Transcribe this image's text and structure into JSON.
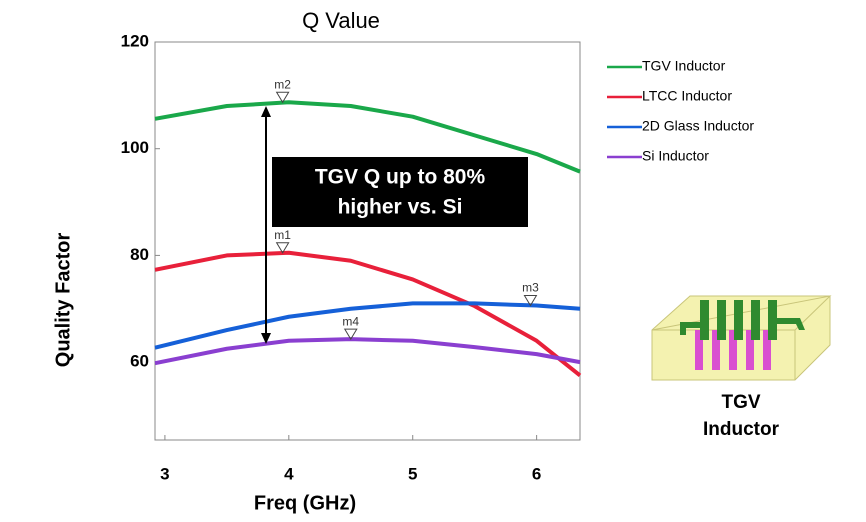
{
  "chart_data": {
    "type": "line",
    "title": "Q Value",
    "x_label": "Freq (GHz)",
    "y_label": "Quality Factor",
    "xlim": [
      2.92,
      6.35
    ],
    "ylim": [
      45.4,
      120
    ],
    "xticks": [
      3,
      4,
      5,
      6
    ],
    "yticks": [
      60,
      80,
      100,
      120
    ],
    "x": [
      2.92,
      3.5,
      4,
      4.5,
      5,
      5.5,
      6,
      6.35
    ],
    "series": [
      {
        "name": "TGV Inductor",
        "color": "#1aa84a",
        "values": [
          105.6,
          108,
          108.7,
          108,
          106,
          102.5,
          99,
          95.7
        ]
      },
      {
        "name": "LTCC Inductor",
        "color": "#e8203a",
        "values": [
          77.3,
          80,
          80.5,
          79,
          75.5,
          70.5,
          64,
          57.5
        ]
      },
      {
        "name": "2D Glass Inductor",
        "color": "#1560d8",
        "values": [
          62.7,
          66,
          68.5,
          70,
          71,
          71,
          70.6,
          70
        ]
      },
      {
        "name": "Si Inductor",
        "color": "#8a3fd0",
        "values": [
          59.8,
          62.5,
          64,
          64.3,
          64,
          62.8,
          61.5,
          60
        ]
      }
    ],
    "markers": [
      {
        "label": "m2",
        "x": 3.95,
        "y": 108.7
      },
      {
        "label": "m1",
        "x": 3.95,
        "y": 80.5
      },
      {
        "label": "m3",
        "x": 5.95,
        "y": 70.6
      },
      {
        "label": "m4",
        "x": 4.5,
        "y": 64.3
      }
    ],
    "annotation": [
      "TGV Q up to 80%",
      "higher vs. Si"
    ],
    "image_caption": [
      "TGV",
      "Inductor"
    ]
  }
}
